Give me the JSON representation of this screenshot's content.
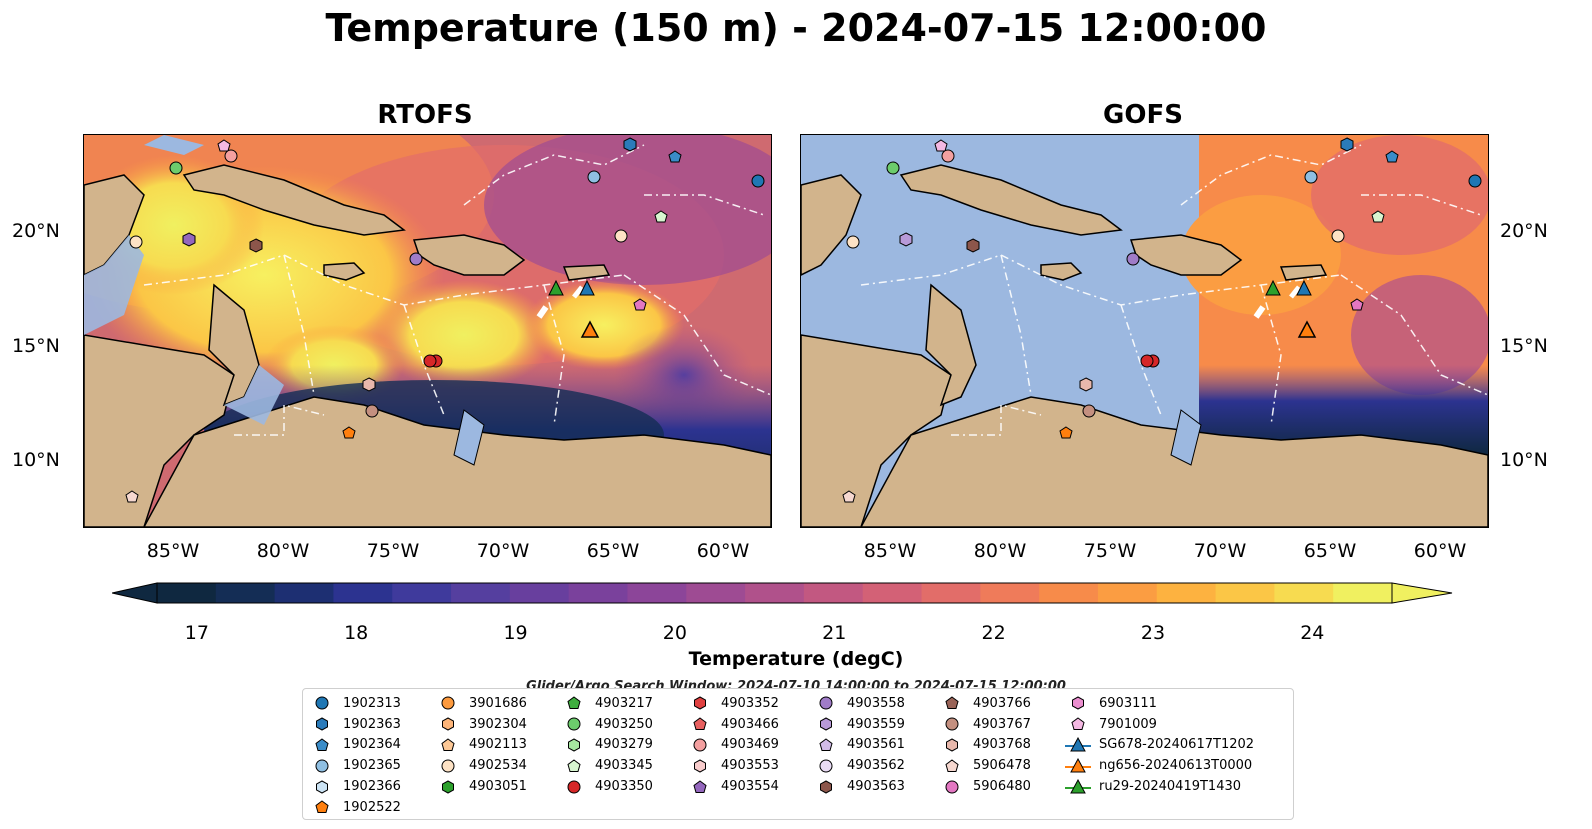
{
  "title": "Temperature (150 m) - 2024-07-15 12:00:00",
  "panels": [
    {
      "title": "RTOFS"
    },
    {
      "title": "GOFS"
    }
  ],
  "lat_labels": [
    "20°N",
    "15°N",
    "10°N"
  ],
  "lon_labels": [
    "85°W",
    "80°W",
    "75°W",
    "70°W",
    "65°W",
    "60°W"
  ],
  "colorbar": {
    "label": "Temperature (degC)",
    "ticks": [
      "17",
      "18",
      "19",
      "20",
      "21",
      "22",
      "23",
      "24"
    ],
    "range": [
      16.75,
      24.5
    ],
    "colors": [
      "#0f2840",
      "#142d55",
      "#1d2f72",
      "#2c3390",
      "#3f3a9c",
      "#553f9f",
      "#683f9e",
      "#7a419c",
      "#8c4599",
      "#9e4b93",
      "#b0518b",
      "#c25881",
      "#d36176",
      "#e26d69",
      "#ef7b5a",
      "#f78b4a",
      "#fb9d42",
      "#fdb240",
      "#fbc646",
      "#f7db50",
      "#f0f060"
    ]
  },
  "search_window": "Glider/Argo Search Window: 2024-07-10 14:00:00 to 2024-07-15 12:00:00",
  "legend": {
    "columns": [
      [
        {
          "label": "1902313",
          "marker": "circle",
          "color": "#1f77b4"
        },
        {
          "label": "1902363",
          "marker": "hexagon",
          "color": "#2b7bba"
        },
        {
          "label": "1902364",
          "marker": "pentagon",
          "color": "#3a8cc8"
        },
        {
          "label": "1902365",
          "marker": "circle",
          "color": "#8fbfe2"
        },
        {
          "label": "1902366",
          "marker": "hexagon",
          "color": "#cce4f5"
        },
        {
          "label": "1902522",
          "marker": "pentagon",
          "color": "#ff7f0e"
        }
      ],
      [
        {
          "label": "3901686",
          "marker": "circle",
          "color": "#fd9a3e"
        },
        {
          "label": "3902304",
          "marker": "hexagon",
          "color": "#fdb57a"
        },
        {
          "label": "4902113",
          "marker": "pentagon",
          "color": "#fdc896"
        },
        {
          "label": "4902534",
          "marker": "circle",
          "color": "#fde2c5"
        },
        {
          "label": "4903051",
          "marker": "hexagon",
          "color": "#2ca02c"
        }
      ],
      [
        {
          "label": "4903217",
          "marker": "pentagon",
          "color": "#3fae3f"
        },
        {
          "label": "4903250",
          "marker": "circle",
          "color": "#6ccc6c"
        },
        {
          "label": "4903279",
          "marker": "hexagon",
          "color": "#a6e6a0"
        },
        {
          "label": "4903345",
          "marker": "pentagon",
          "color": "#d8f5d0"
        },
        {
          "label": "4903350",
          "marker": "circle",
          "color": "#d62728"
        }
      ],
      [
        {
          "label": "4903352",
          "marker": "hexagon",
          "color": "#e04040"
        },
        {
          "label": "4903466",
          "marker": "pentagon",
          "color": "#e86060"
        },
        {
          "label": "4903469",
          "marker": "circle",
          "color": "#f4a0a0"
        },
        {
          "label": "4903553",
          "marker": "hexagon",
          "color": "#f8cccc"
        },
        {
          "label": "4903554",
          "marker": "pentagon",
          "color": "#9467bd"
        }
      ],
      [
        {
          "label": "4903558",
          "marker": "circle",
          "color": "#a07cc8"
        },
        {
          "label": "4903559",
          "marker": "hexagon",
          "color": "#b89ad8"
        },
        {
          "label": "4903561",
          "marker": "pentagon",
          "color": "#d2bce8"
        },
        {
          "label": "4903562",
          "marker": "circle",
          "color": "#eadcf5"
        },
        {
          "label": "4903563",
          "marker": "hexagon",
          "color": "#8c564b"
        }
      ],
      [
        {
          "label": "4903766",
          "marker": "pentagon",
          "color": "#9a6458"
        },
        {
          "label": "4903767",
          "marker": "circle",
          "color": "#c49080"
        },
        {
          "label": "4903768",
          "marker": "hexagon",
          "color": "#e8b8ac"
        },
        {
          "label": "5906478",
          "marker": "pentagon",
          "color": "#f6d8d0"
        },
        {
          "label": "5906480",
          "marker": "circle",
          "color": "#e377c2"
        }
      ],
      [
        {
          "label": "6903111",
          "marker": "hexagon",
          "color": "#ec8fd0"
        },
        {
          "label": "7901009",
          "marker": "pentagon",
          "color": "#f4b8e2"
        },
        {
          "label": "SG678-20240617T1202",
          "marker": "triangle-line",
          "color": "#1f77b4"
        },
        {
          "label": "ng656-20240613T0000",
          "marker": "triangle-line",
          "color": "#ff7f0e"
        },
        {
          "label": "ru29-20240419T1430",
          "marker": "triangle-line",
          "color": "#2ca02c"
        }
      ]
    ]
  }
}
